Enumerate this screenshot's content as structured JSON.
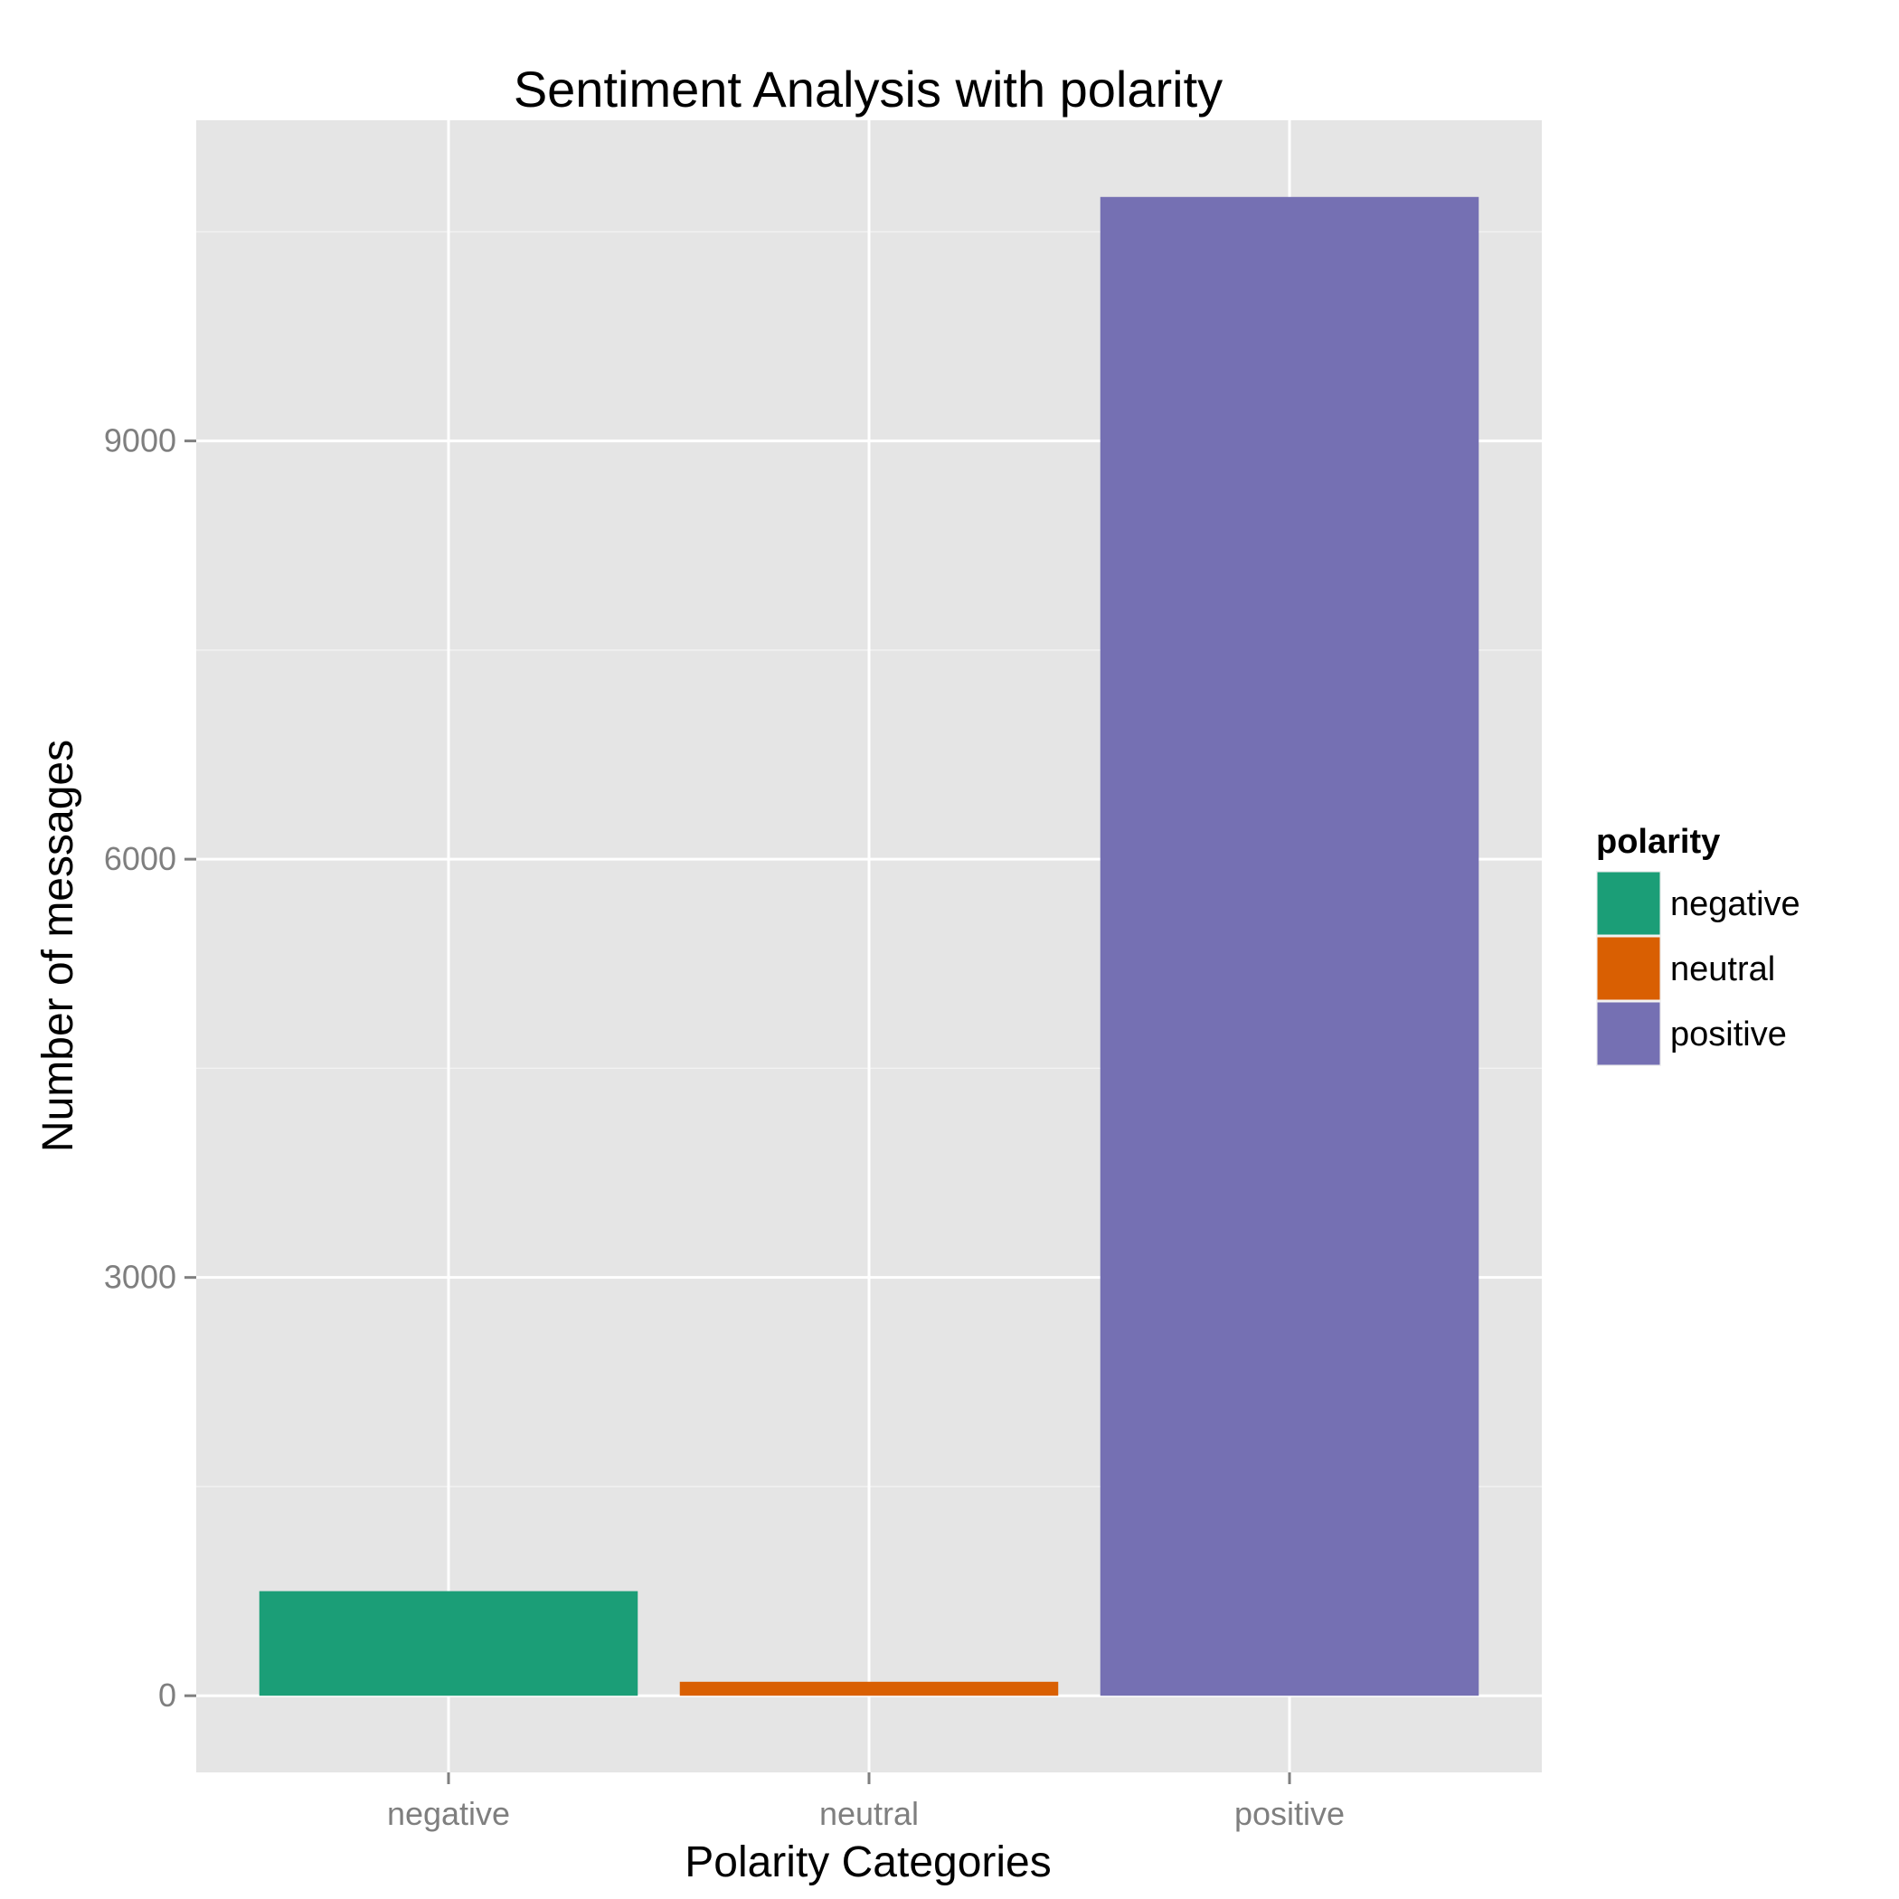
{
  "chart_data": {
    "type": "bar",
    "title": "Sentiment Analysis with polarity",
    "xlabel": "Polarity Categories",
    "ylabel": "Number of messages",
    "categories": [
      "negative",
      "neutral",
      "positive"
    ],
    "values": [
      750,
      100,
      10750
    ],
    "colors": [
      "#1b9e77",
      "#d95f02",
      "#7570b3"
    ],
    "ylim": [
      -550,
      11300
    ],
    "yticks": [
      0,
      3000,
      6000,
      9000
    ],
    "ytick_labels": [
      "0",
      "3000",
      "6000",
      "9000"
    ],
    "grid": true,
    "background": "#e5e5e5",
    "legend": {
      "title": "polarity",
      "position": "right",
      "entries": [
        "negative",
        "neutral",
        "positive"
      ]
    }
  }
}
